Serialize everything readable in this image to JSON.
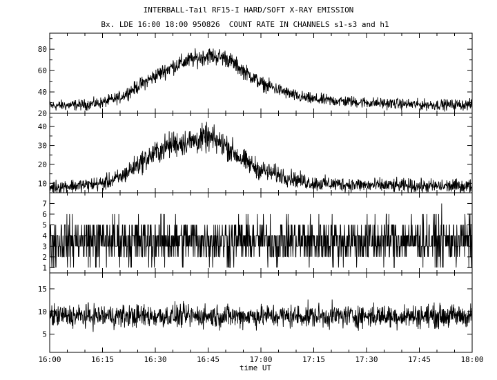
{
  "title": "INTERBALL-Tail RF15-I HARD/SOFT X-RAY EMISSION",
  "subtitle": "Bx. LDE 16:00 18:00 950826  COUNT RATE IN CHANNELS s1-s3 and h1",
  "chart_data": {
    "type": "line",
    "xlabel": "time UT",
    "x_range": [
      "16:00",
      "18:00"
    ],
    "x_ticks": [
      "16:00",
      "16:15",
      "16:30",
      "16:45",
      "17:00",
      "17:15",
      "17:30",
      "17:45",
      "18:00"
    ],
    "panels": [
      {
        "ylim": [
          20,
          95
        ],
        "y_ticks": [
          20,
          30,
          40,
          50,
          60,
          70,
          80,
          90
        ],
        "y_tick_labels": [
          "20",
          "40",
          "60",
          "80"
        ],
        "time": [
          "16:00",
          "16:10",
          "16:15",
          "16:20",
          "16:25",
          "16:30",
          "16:35",
          "16:40",
          "16:45",
          "16:50",
          "16:55",
          "17:00",
          "17:10",
          "17:15",
          "17:30",
          "17:45",
          "18:00"
        ],
        "values": [
          27,
          28,
          30,
          35,
          45,
          55,
          64,
          70,
          74,
          72,
          60,
          48,
          36,
          33,
          30,
          28,
          28
        ],
        "noise": 3.5
      },
      {
        "ylim": [
          5,
          47
        ],
        "y_ticks": [
          5,
          10,
          15,
          20,
          25,
          30,
          35,
          40,
          45
        ],
        "y_tick_labels": [
          "10",
          "20",
          "30",
          "40"
        ],
        "time": [
          "16:00",
          "16:10",
          "16:15",
          "16:20",
          "16:25",
          "16:30",
          "16:35",
          "16:40",
          "16:45",
          "16:50",
          "16:55",
          "17:00",
          "17:10",
          "17:15",
          "17:30",
          "17:45",
          "18:00"
        ],
        "values": [
          8,
          9,
          10,
          13,
          20,
          26,
          31,
          32,
          34,
          30,
          22,
          17,
          12,
          10,
          9,
          8.5,
          8.5
        ],
        "noise": 2.5
      },
      {
        "ylim": [
          0.5,
          8
        ],
        "y_ticks": [
          1,
          2,
          3,
          4,
          5,
          6,
          7
        ],
        "y_tick_labels": [
          "1",
          "2",
          "3",
          "4",
          "5",
          "6",
          "7"
        ],
        "time": [
          "16:00",
          "18:00"
        ],
        "values": [
          3.5,
          3.5
        ],
        "noise": 1.6
      },
      {
        "ylim": [
          1,
          18.5
        ],
        "y_ticks": [
          5,
          10,
          15
        ],
        "y_tick_labels": [
          "5",
          "10",
          "15"
        ],
        "time": [
          "16:00",
          "18:00"
        ],
        "values": [
          9,
          9
        ],
        "noise": 1.8
      }
    ]
  }
}
